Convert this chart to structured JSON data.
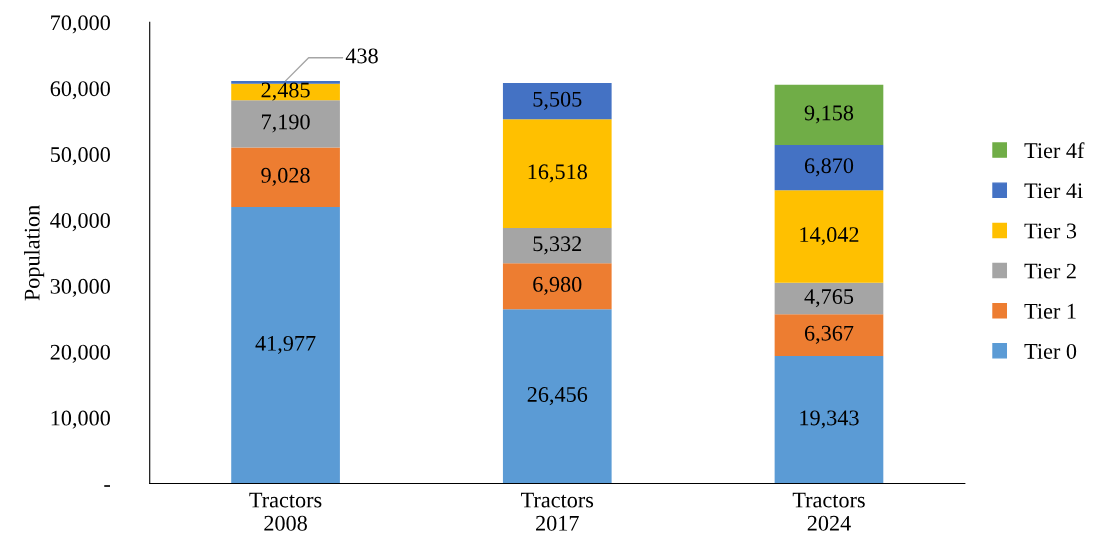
{
  "chart_data": {
    "type": "bar",
    "stacked": true,
    "ylabel": "Population",
    "categories": [
      "Tractors\n2008",
      "Tractors\n2017",
      "Tractors\n2024"
    ],
    "series": [
      {
        "name": "Tier 0",
        "color": "#5b9bd5",
        "values": [
          41977,
          26456,
          19343
        ],
        "value_labels": [
          "41,977",
          "26,456",
          "19,343"
        ]
      },
      {
        "name": "Tier 1",
        "color": "#ed7d31",
        "values": [
          9028,
          6980,
          6367
        ],
        "value_labels": [
          "9,028",
          "6,980",
          "6,367"
        ]
      },
      {
        "name": "Tier 2",
        "color": "#a5a5a5",
        "values": [
          7190,
          5332,
          4765
        ],
        "value_labels": [
          "7,190",
          "5,332",
          "4,765"
        ]
      },
      {
        "name": "Tier 3",
        "color": "#ffc000",
        "values": [
          2485,
          16518,
          14042
        ],
        "value_labels": [
          "2,485",
          "16,518",
          "14,042"
        ]
      },
      {
        "name": "Tier 4i",
        "color": "#4472c4",
        "values": [
          438,
          5505,
          6870
        ],
        "value_labels": [
          "438",
          "5,505",
          "6,870"
        ]
      },
      {
        "name": "Tier 4f",
        "color": "#70ad47",
        "values": [
          null,
          null,
          9158
        ],
        "value_labels": [
          null,
          null,
          "9,158"
        ]
      }
    ],
    "ylim": [
      0,
      70000
    ],
    "yticks": [
      {
        "value": 0,
        "label": "-"
      },
      {
        "value": 10000,
        "label": "10,000"
      },
      {
        "value": 20000,
        "label": "20,000"
      },
      {
        "value": 30000,
        "label": "30,000"
      },
      {
        "value": 40000,
        "label": "40,000"
      },
      {
        "value": 50000,
        "label": "50,000"
      },
      {
        "value": 60000,
        "label": "60,000"
      },
      {
        "value": 70000,
        "label": "70,000"
      }
    ],
    "grid": false,
    "legend": "right"
  }
}
